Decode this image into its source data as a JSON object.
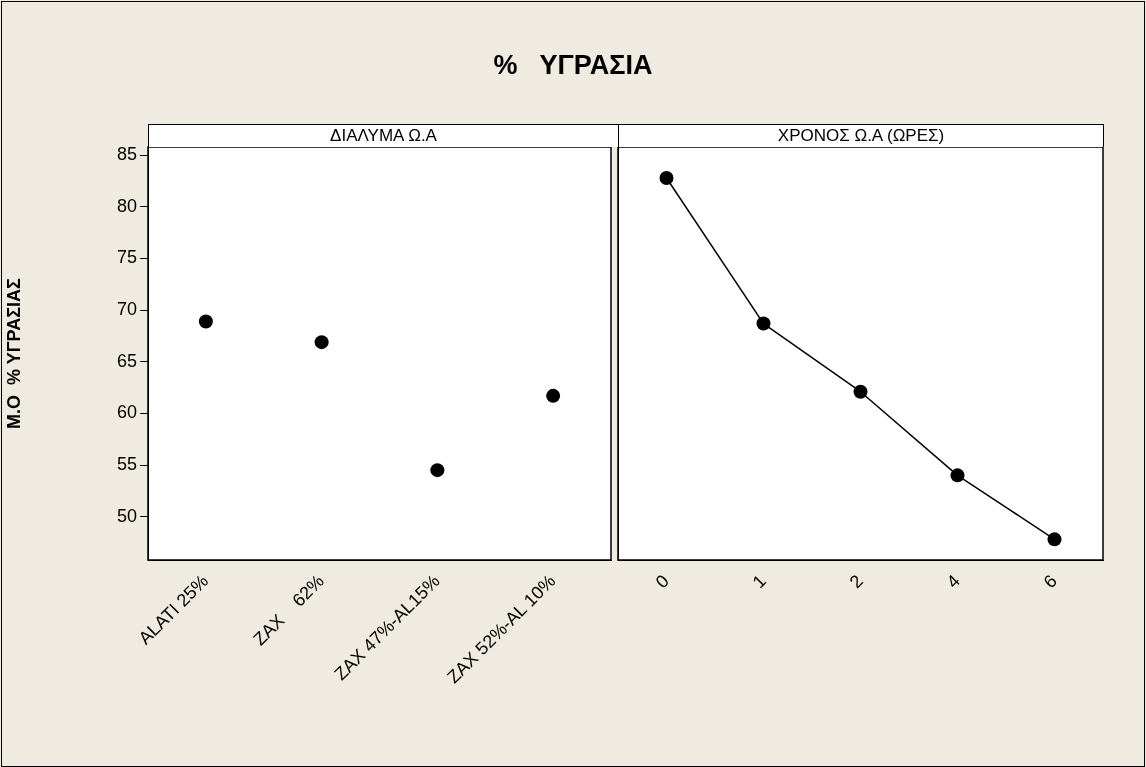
{
  "chart_data": [
    {
      "type": "scatter",
      "title": "%   ΥΓΡΑΣΙΑ",
      "xlabel": "ΔΙΑΛΥΜΑ Ω.Α",
      "ylabel": "Μ.Ο  % ΥΓΡΑΣΙΑΣ",
      "categories": [
        "ALATI 25%",
        "ZAX    62%",
        "ZAX 47%-AL15%",
        "ZAX 52%-AL 10%"
      ],
      "values": [
        68.9,
        66.9,
        54.5,
        61.7
      ],
      "color": "#000000",
      "marker": "circle",
      "ylim": [
        45.8,
        85.8
      ],
      "yticks": [
        50,
        55,
        60,
        65,
        70,
        75,
        80,
        85
      ]
    },
    {
      "type": "line",
      "xlabel": "ΧΡΟΝΟΣ Ω.Α (ΩΡΕΣ)",
      "categories": [
        "0",
        "1",
        "2",
        "4",
        "6"
      ],
      "values": [
        82.8,
        68.7,
        62.1,
        54.0,
        47.8
      ],
      "color": "#000000",
      "marker": "circle",
      "line_style": "solid",
      "ylim": [
        45.8,
        85.8
      ],
      "yticks": [
        50,
        55,
        60,
        65,
        70,
        75,
        80,
        85
      ],
      "tick_labels": "x"
    }
  ]
}
